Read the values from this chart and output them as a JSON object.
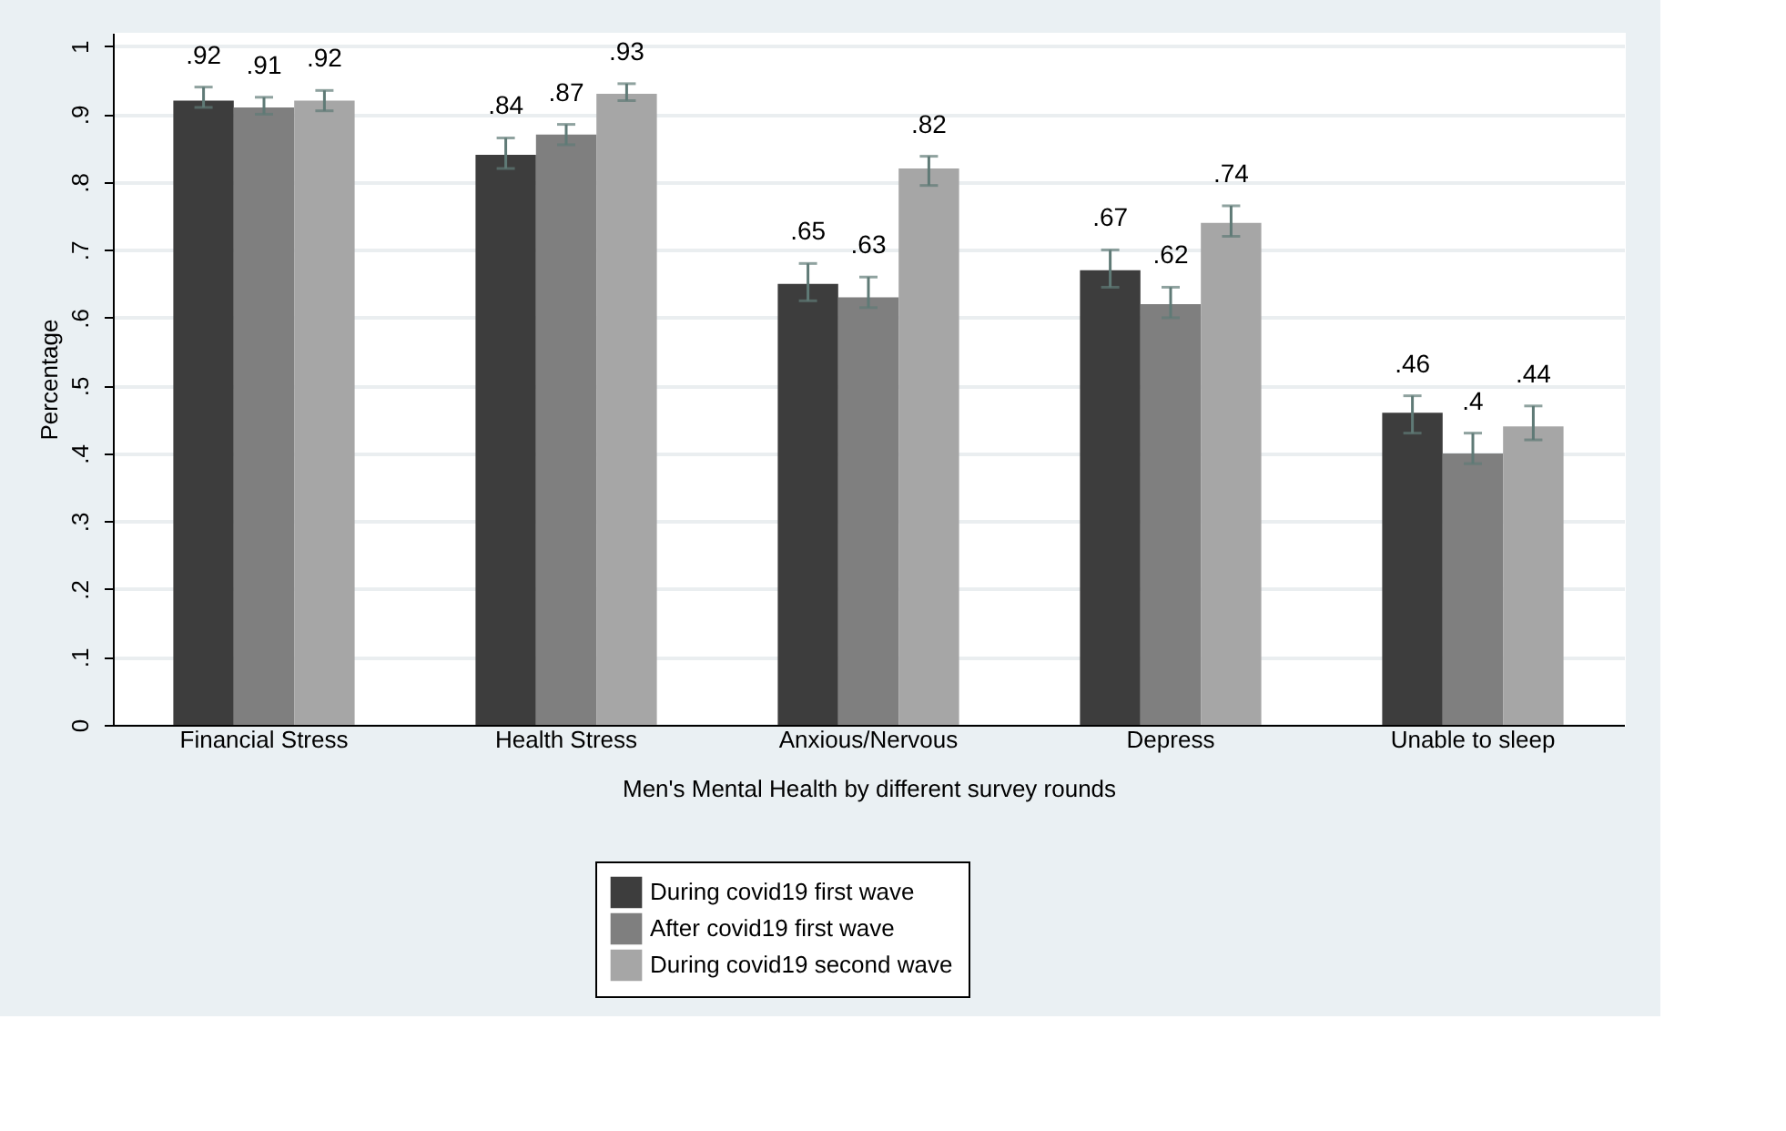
{
  "chart_data": {
    "type": "bar",
    "xlabel": "Men's Mental Health by different survey rounds",
    "ylabel": "Percentage",
    "categories": [
      "Financial Stress",
      "Health Stress",
      "Anxious/Nervous",
      "Depress",
      "Unable to sleep"
    ],
    "series": [
      {
        "name": "During covid19 first wave",
        "color": "#3d3d3d",
        "values": [
          0.92,
          0.84,
          0.65,
          0.67,
          0.46
        ],
        "value_labels": [
          ".92",
          ".84",
          ".65",
          ".67",
          ".46"
        ],
        "errors": [
          [
            0.91,
            0.94
          ],
          [
            0.82,
            0.865
          ],
          [
            0.625,
            0.68
          ],
          [
            0.645,
            0.7
          ],
          [
            0.43,
            0.485
          ]
        ]
      },
      {
        "name": "After covid19 first wave",
        "color": "#7f7f7f",
        "values": [
          0.91,
          0.87,
          0.63,
          0.62,
          0.4
        ],
        "value_labels": [
          ".91",
          ".87",
          ".63",
          ".62",
          ".4"
        ],
        "errors": [
          [
            0.9,
            0.925
          ],
          [
            0.855,
            0.885
          ],
          [
            0.615,
            0.66
          ],
          [
            0.6,
            0.645
          ],
          [
            0.385,
            0.43
          ]
        ]
      },
      {
        "name": "During covid19 second wave",
        "color": "#a6a6a6",
        "values": [
          0.92,
          0.93,
          0.82,
          0.74,
          0.44
        ],
        "value_labels": [
          ".92",
          ".93",
          ".82",
          ".74",
          ".44"
        ],
        "errors": [
          [
            0.905,
            0.935
          ],
          [
            0.92,
            0.945
          ],
          [
            0.795,
            0.838
          ],
          [
            0.72,
            0.765
          ],
          [
            0.42,
            0.47
          ]
        ]
      }
    ],
    "ylim": [
      0,
      1.02
    ],
    "yticks": [
      {
        "value": 0,
        "label": "0"
      },
      {
        "value": 0.1,
        "label": ".1"
      },
      {
        "value": 0.2,
        "label": ".2"
      },
      {
        "value": 0.3,
        "label": ".3"
      },
      {
        "value": 0.4,
        "label": ".4"
      },
      {
        "value": 0.5,
        "label": ".5"
      },
      {
        "value": 0.6,
        "label": ".6"
      },
      {
        "value": 0.7,
        "label": ".7"
      },
      {
        "value": 0.8,
        "label": ".8"
      },
      {
        "value": 0.9,
        "label": ".9"
      },
      {
        "value": 1,
        "label": "1"
      }
    ],
    "grid": "y",
    "legend": "bottom"
  }
}
